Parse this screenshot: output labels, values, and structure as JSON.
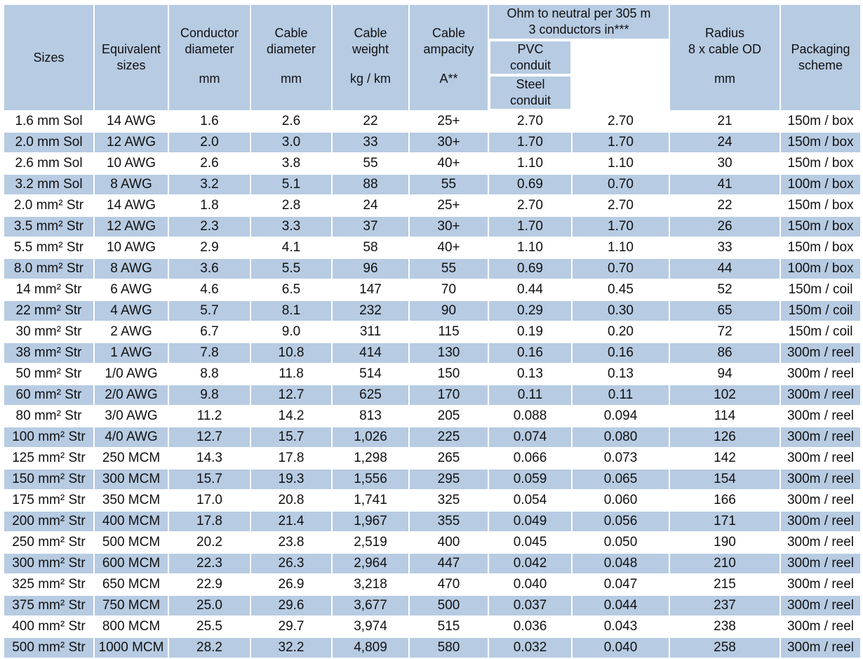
{
  "header": {
    "sizes": "Sizes",
    "equivalent": [
      "Equivalent",
      "sizes"
    ],
    "conductor": [
      "Conductor",
      "diameter",
      "mm"
    ],
    "cable_diam": [
      "Cable",
      "diameter",
      "mm"
    ],
    "cable_weight": [
      "Cable",
      "weight",
      "kg / km"
    ],
    "ampacity": [
      "Cable",
      "ampacity",
      "A**"
    ],
    "ohm_group": [
      "Ohm to neutral per 305 m",
      "3 conductors in***"
    ],
    "pvc": [
      "PVC",
      "conduit"
    ],
    "steel": [
      "Steel",
      "conduit"
    ],
    "radius": [
      "Radius",
      "8 x cable OD",
      "mm"
    ],
    "packaging": [
      "Packaging",
      "scheme"
    ]
  },
  "rows": [
    [
      "1.6 mm Sol",
      "14 AWG",
      "1.6",
      "2.6",
      "22",
      "25+",
      "2.70",
      "2.70",
      "21",
      "150m / box"
    ],
    [
      "2.0 mm  Sol",
      "12 AWG",
      "2.0",
      "3.0",
      "33",
      "30+",
      "1.70",
      "1.70",
      "24",
      "150m / box"
    ],
    [
      "2.6 mm Sol",
      "10 AWG",
      "2.6",
      "3.8",
      "55",
      "40+",
      "1.10",
      "1.10",
      "30",
      "150m / box"
    ],
    [
      "3.2 mm Sol",
      "8 AWG",
      "3.2",
      "5.1",
      "88",
      "55",
      "0.69",
      "0.70",
      "41",
      "100m / box"
    ],
    [
      "2.0 mm² Str",
      "14 AWG",
      "1.8",
      "2.8",
      "24",
      "25+",
      "2.70",
      "2.70",
      "22",
      "150m / box"
    ],
    [
      "3.5 mm² Str",
      "12 AWG",
      "2.3",
      "3.3",
      "37",
      "30+",
      "1.70",
      "1.70",
      "26",
      "150m / box"
    ],
    [
      "5.5 mm² Str",
      "10 AWG",
      "2.9",
      "4.1",
      "58",
      "40+",
      "1.10",
      "1.10",
      "33",
      "150m / box"
    ],
    [
      "8.0 mm² Str",
      "8 AWG",
      "3.6",
      "5.5",
      "96",
      "55",
      "0.69",
      "0.70",
      "44",
      "100m / box"
    ],
    [
      "14 mm² Str",
      "6 AWG",
      "4.6",
      "6.5",
      "147",
      "70",
      "0.44",
      "0.45",
      "52",
      "150m / coil"
    ],
    [
      "22 mm² Str",
      "4 AWG",
      "5.7",
      "8.1",
      "232",
      "90",
      "0.29",
      "0.30",
      "65",
      "150m / coil"
    ],
    [
      "30 mm² Str",
      "2 AWG",
      "6.7",
      "9.0",
      "311",
      "115",
      "0.19",
      "0.20",
      "72",
      "150m / coil"
    ],
    [
      "38 mm² Str",
      "1 AWG",
      "7.8",
      "10.8",
      "414",
      "130",
      "0.16",
      "0.16",
      "86",
      "300m / reel"
    ],
    [
      "50 mm² Str",
      "1/0 AWG",
      "8.8",
      "11.8",
      "514",
      "150",
      "0.13",
      "0.13",
      "94",
      "300m / reel"
    ],
    [
      "60 mm² Str",
      "2/0 AWG",
      "9.8",
      "12.7",
      "625",
      "170",
      "0.11",
      "0.11",
      "102",
      "300m / reel"
    ],
    [
      "80 mm² Str",
      "3/0 AWG",
      "11.2",
      "14.2",
      "813",
      "205",
      "0.088",
      "0.094",
      "114",
      "300m / reel"
    ],
    [
      "100 mm² Str",
      "4/0 AWG",
      "12.7",
      "15.7",
      "1,026",
      "225",
      "0.074",
      "0.080",
      "126",
      "300m / reel"
    ],
    [
      "125 mm² Str",
      "250 MCM",
      "14.3",
      "17.8",
      "1,298",
      "265",
      "0.066",
      "0.073",
      "142",
      "300m / reel"
    ],
    [
      "150 mm² Str",
      "300 MCM",
      "15.7",
      "19.3",
      "1,556",
      "295",
      "0.059",
      "0.065",
      "154",
      "300m / reel"
    ],
    [
      "175 mm² Str",
      "350 MCM",
      "17.0",
      "20.8",
      "1,741",
      "325",
      "0.054",
      "0.060",
      "166",
      "300m / reel"
    ],
    [
      "200 mm² Str",
      "400 MCM",
      "17.8",
      "21.4",
      "1,967",
      "355",
      "0.049",
      "0.056",
      "171",
      "300m / reel"
    ],
    [
      "250 mm² Str",
      "500 MCM",
      "20.2",
      "23.8",
      "2,519",
      "400",
      "0.045",
      "0.050",
      "190",
      "300m / reel"
    ],
    [
      "300 mm² Str",
      "600 MCM",
      "22.3",
      "26.3",
      "2,964",
      "447",
      "0.042",
      "0.048",
      "210",
      "300m / reel"
    ],
    [
      "325 mm² Str",
      "650 MCM",
      "22.9",
      "26.9",
      "3,218",
      "470",
      "0.040",
      "0.047",
      "215",
      "300m / reel"
    ],
    [
      "375 mm² Str",
      "750 MCM",
      "25.0",
      "29.6",
      "3,677",
      "500",
      "0.037",
      "0.044",
      "237",
      "300m / reel"
    ],
    [
      "400 mm² Str",
      "800 MCM",
      "25.5",
      "29.7",
      "3,974",
      "515",
      "0.036",
      "0.043",
      "238",
      "300m / reel"
    ],
    [
      "500 mm² Str",
      "1000 MCM",
      "28.2",
      "32.2",
      "4,809",
      "580",
      "0.032",
      "0.040",
      "258",
      "300m / reel"
    ]
  ],
  "colors": {
    "header_bg": "#b7cbe2",
    "band_bg": "#b7cbe2",
    "plain_bg": "#ffffff",
    "grid": "#ffffff"
  }
}
